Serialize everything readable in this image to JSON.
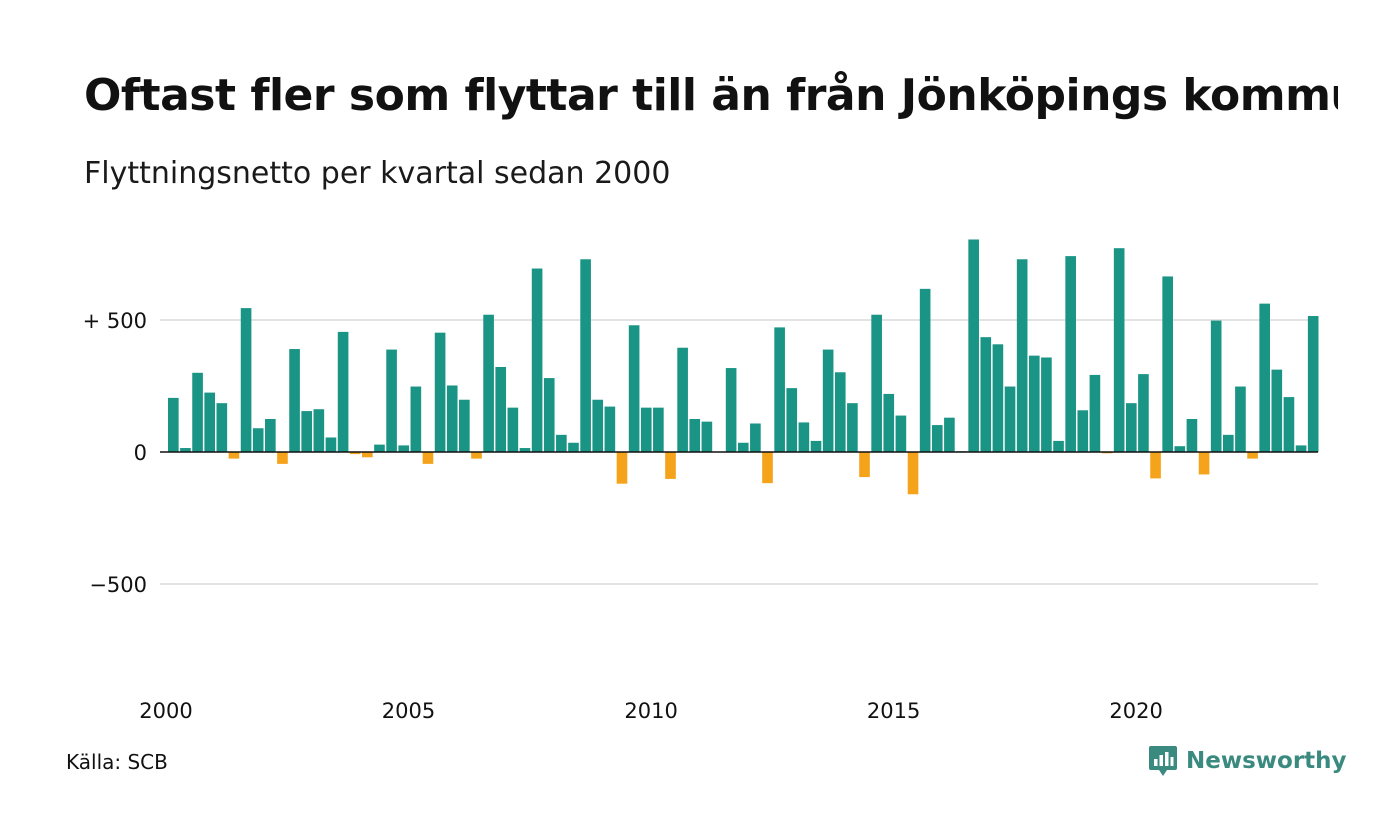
{
  "header": {
    "title": "Oftast fler som flyttar till än från Jönköpings kommun",
    "subtitle": "Flyttningsnetto per kvartal sedan 2000"
  },
  "footer": {
    "source": "Källa: SCB",
    "brand": "Newsworthy",
    "brand_icon": "newsworthy-logo-icon"
  },
  "colors": {
    "positive": "#1a9485",
    "negative": "#f5a31b",
    "grid": "#e3e3e3",
    "zero_line": "#111111",
    "brand": "#3a8a80"
  },
  "chart_data": {
    "type": "bar",
    "title": "Oftast fler som flyttar till än från Jönköpings kommun",
    "subtitle": "Flyttningsnetto per kvartal sedan 2000",
    "xlabel": "",
    "ylabel": "",
    "ylim": [
      -850,
      850
    ],
    "y_ticks": [
      500,
      0,
      -500
    ],
    "y_tick_labels": [
      "+ 500",
      "0",
      "−500"
    ],
    "x_ticks": [
      "2000",
      "2005",
      "2010",
      "2015",
      "2020"
    ],
    "grid": true,
    "legend": "none",
    "series": [
      {
        "values": [
          205,
          15,
          300,
          225,
          185,
          -25,
          545,
          90,
          125,
          -45,
          390,
          155,
          162,
          55,
          455,
          -8,
          -20,
          28,
          388,
          25,
          248,
          -45,
          452,
          252,
          198,
          -25,
          520,
          322,
          168,
          15,
          695,
          280,
          65,
          35,
          730,
          198,
          172,
          -120,
          480,
          168,
          168,
          -102,
          395,
          125,
          115,
          0,
          318,
          35,
          108,
          -118,
          472,
          242,
          112,
          42,
          388,
          302,
          185,
          -95,
          520,
          220,
          138,
          -160,
          618,
          102,
          130,
          3,
          805,
          435,
          408,
          248,
          730,
          365,
          358,
          42,
          742,
          158,
          292,
          -5,
          772,
          185,
          295,
          -100,
          665,
          22,
          125,
          -85,
          498,
          65,
          248,
          -25,
          562,
          312,
          208,
          25,
          515
        ]
      }
    ]
  }
}
